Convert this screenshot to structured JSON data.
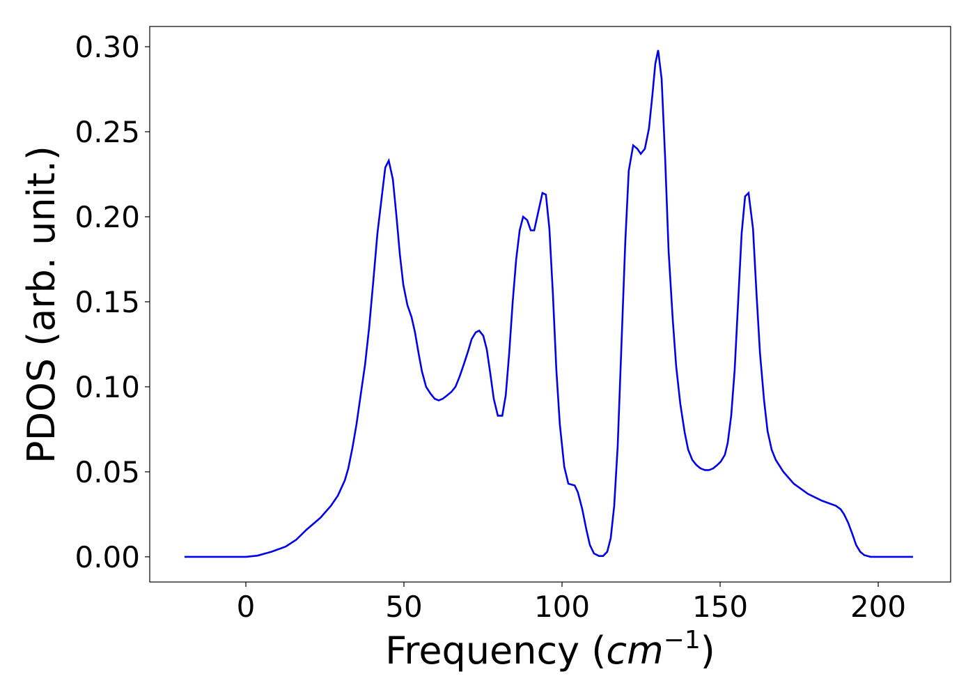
{
  "chart_data": {
    "type": "line",
    "xlabel": [
      "Frequency (",
      "cm",
      "−1",
      ")"
    ],
    "ylabel": "PDOS (arb. unit.)",
    "xlim": [
      -30.4,
      222.9
    ],
    "ylim": [
      -0.0148,
      0.3119
    ],
    "xticks": [
      0,
      50,
      100,
      150,
      200
    ],
    "yticks": [
      {
        "value": 0,
        "label": "0.00"
      },
      {
        "value": 0.05,
        "label": "0.05"
      },
      {
        "value": 0.1,
        "label": "0.10"
      },
      {
        "value": 0.15,
        "label": "0.15"
      },
      {
        "value": 0.2,
        "label": "0.20"
      },
      {
        "value": 0.25,
        "label": "0.25"
      },
      {
        "value": 0.3,
        "label": "0.30"
      }
    ],
    "grid": false,
    "x": [
      -19.4,
      0,
      3.7,
      8.1,
      12.6,
      15.9,
      19.2,
      23.6,
      26.9,
      29.1,
      31.3,
      32.4,
      33.7,
      35,
      36.3,
      37.7,
      39,
      40.3,
      41.6,
      43,
      44.1,
      45.2,
      46.5,
      47.6,
      48.7,
      49.8,
      51.1,
      52.4,
      53.5,
      54.6,
      55.7,
      57,
      58.4,
      59.7,
      61,
      62.3,
      63.7,
      65,
      66.3,
      67.6,
      68.9,
      70.3,
      71.4,
      72.7,
      73.8,
      75.1,
      76.2,
      77.3,
      78.4,
      79.7,
      81.1,
      82.2,
      83.3,
      84.4,
      85.5,
      86.6,
      87.7,
      89,
      90.1,
      91.2,
      92.5,
      93.8,
      94.9,
      96,
      97.1,
      98.2,
      99.3,
      100.7,
      102,
      104,
      105,
      106.4,
      107.7,
      108.8,
      110.1,
      111.7,
      113,
      114.3,
      115.4,
      116.5,
      117.6,
      118.9,
      120,
      121.1,
      122.5,
      123.8,
      124.9,
      126.2,
      127.5,
      128.6,
      129.5,
      130.4,
      131.5,
      132.6,
      133.7,
      135,
      136.1,
      137.4,
      138.8,
      139.9,
      141.2,
      142.5,
      143.8,
      145.2,
      146.5,
      147.8,
      149.1,
      150.2,
      151.5,
      152.4,
      153.5,
      154.6,
      155.7,
      156.8,
      157.9,
      159,
      160.4,
      161.5,
      162.6,
      163.9,
      165,
      166.3,
      167.6,
      170,
      173.3,
      177.8,
      182.2,
      186.6,
      188.1,
      189.2,
      190.5,
      191.9,
      193,
      194.3,
      195.6,
      197.6,
      204,
      211
    ],
    "series": [
      {
        "name": "PDOS",
        "color": "#0000ee",
        "values": [
          0,
          0,
          0.0007,
          0.003,
          0.006,
          0.01,
          0.016,
          0.023,
          0.03,
          0.036,
          0.045,
          0.052,
          0.064,
          0.078,
          0.095,
          0.113,
          0.135,
          0.162,
          0.19,
          0.212,
          0.229,
          0.233,
          0.222,
          0.201,
          0.178,
          0.16,
          0.148,
          0.141,
          0.132,
          0.12,
          0.109,
          0.1,
          0.096,
          0.093,
          0.092,
          0.093,
          0.095,
          0.097,
          0.1,
          0.106,
          0.113,
          0.121,
          0.128,
          0.132,
          0.133,
          0.13,
          0.122,
          0.108,
          0.093,
          0.083,
          0.083,
          0.095,
          0.12,
          0.15,
          0.175,
          0.192,
          0.2,
          0.198,
          0.192,
          0.192,
          0.203,
          0.214,
          0.213,
          0.193,
          0.155,
          0.11,
          0.078,
          0.053,
          0.043,
          0.042,
          0.038,
          0.028,
          0.016,
          0.007,
          0.002,
          0.0005,
          0.0005,
          0.003,
          0.011,
          0.03,
          0.065,
          0.13,
          0.185,
          0.227,
          0.242,
          0.24,
          0.237,
          0.24,
          0.252,
          0.272,
          0.29,
          0.298,
          0.281,
          0.235,
          0.18,
          0.14,
          0.112,
          0.09,
          0.073,
          0.063,
          0.057,
          0.054,
          0.052,
          0.051,
          0.051,
          0.052,
          0.054,
          0.056,
          0.06,
          0.067,
          0.083,
          0.11,
          0.15,
          0.19,
          0.212,
          0.214,
          0.193,
          0.155,
          0.12,
          0.092,
          0.074,
          0.063,
          0.057,
          0.05,
          0.043,
          0.037,
          0.033,
          0.03,
          0.028,
          0.025,
          0.02,
          0.013,
          0.007,
          0.003,
          0.001,
          0,
          0,
          0
        ]
      }
    ]
  }
}
